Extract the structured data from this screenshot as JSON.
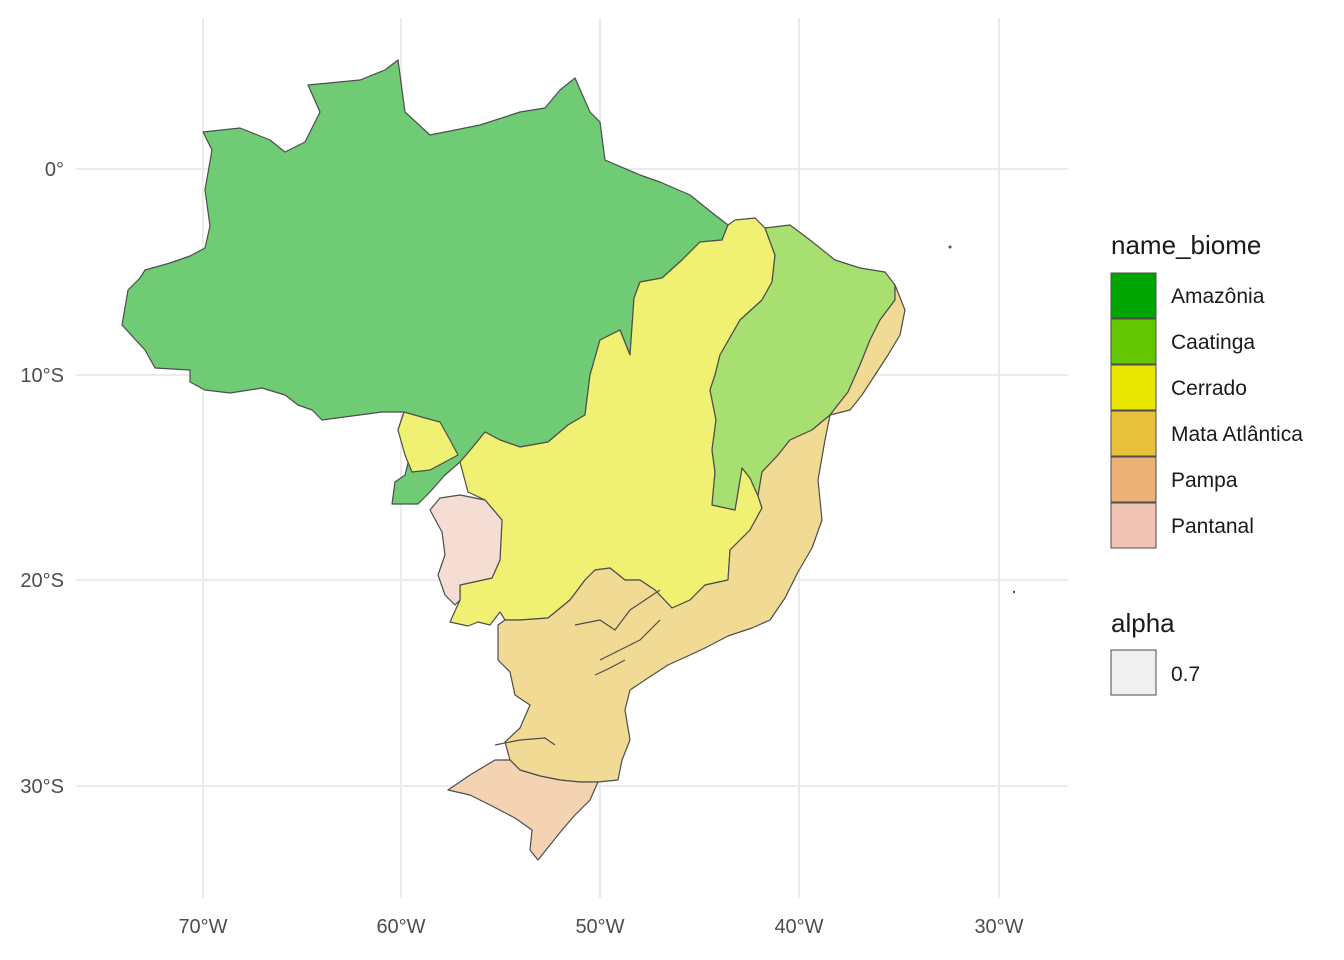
{
  "map": {
    "x_ticks": [
      "70°W",
      "60°W",
      "50°W",
      "40°W",
      "30°W"
    ],
    "y_ticks": [
      "0°",
      "10°S",
      "20°S",
      "30°S"
    ],
    "biomes": [
      {
        "name": "Amazônia",
        "fill": "#6fcb74"
      },
      {
        "name": "Caatinga",
        "fill": "#a7e070"
      },
      {
        "name": "Cerrado",
        "fill": "#f0f072"
      },
      {
        "name": "Mata Atlântica",
        "fill": "#f1da93"
      },
      {
        "name": "Pampa",
        "fill": "#f4d3b3"
      },
      {
        "name": "Pantanal",
        "fill": "#f6ddd3"
      }
    ]
  },
  "legend": {
    "fill_title": "name_biome",
    "fill_entries": [
      {
        "label": "Amazônia",
        "color": "#00a600"
      },
      {
        "label": "Caatinga",
        "color": "#63c600"
      },
      {
        "label": "Cerrado",
        "color": "#e6e600"
      },
      {
        "label": "Mata Atlântica",
        "color": "#e8c23a"
      },
      {
        "label": "Pampa",
        "color": "#ecb176"
      },
      {
        "label": "Pantanal",
        "color": "#f0c3b4"
      }
    ],
    "alpha_title": "alpha",
    "alpha_entry": {
      "label": "0.7",
      "color": "#f0f0f0"
    }
  }
}
